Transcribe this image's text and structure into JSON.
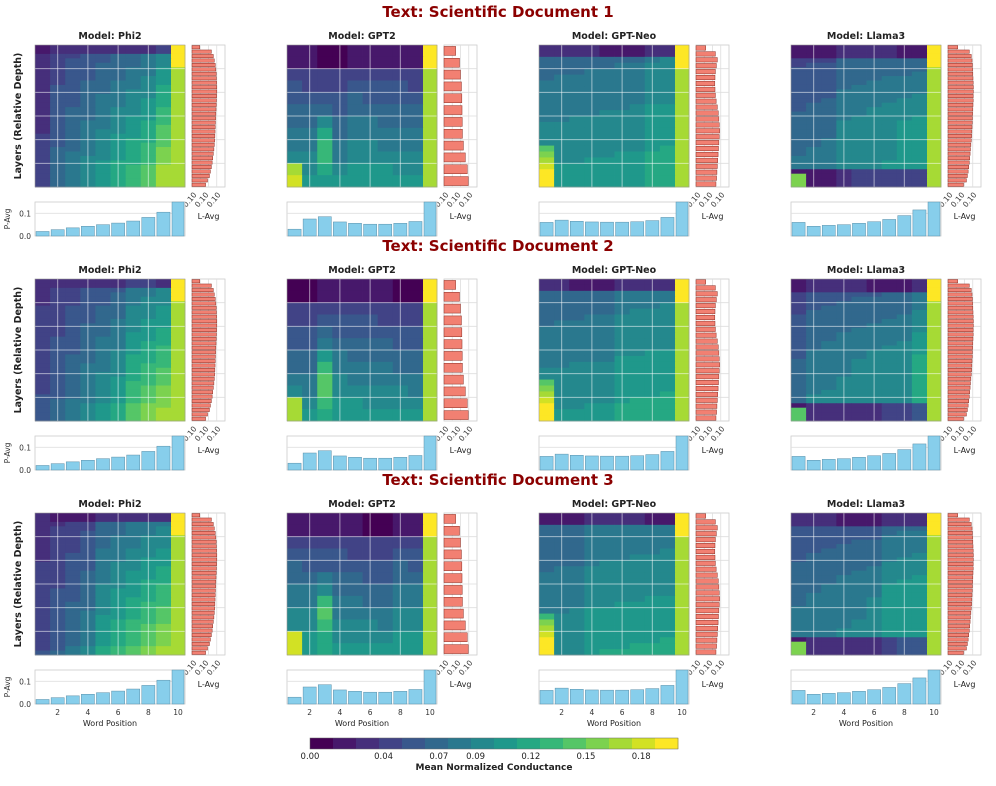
{
  "chart_data": {
    "type": "heatmap",
    "documents": [
      "Text: Scientific Document 1",
      "Text: Scientific Document 2",
      "Text: Scientific Document 3"
    ],
    "models": [
      "Model: Phi2",
      "Model: GPT2",
      "Model: GPT-Neo",
      "Model: Llama3"
    ],
    "model_keys": [
      "phi2",
      "gpt2",
      "gptneo",
      "llama3"
    ],
    "layer_counts": [
      32,
      12,
      24,
      32
    ],
    "ylabel": "Layers (Relative Depth)",
    "xlabel": "Word Position",
    "x_ticks": [
      2,
      4,
      6,
      8,
      10
    ],
    "word_positions": [
      1,
      2,
      3,
      4,
      5,
      6,
      7,
      8,
      9,
      10
    ],
    "p_avg_label": "P-Avg",
    "p_avg_ticks": [
      "0.0",
      "0.1"
    ],
    "p_avg_range": [
      0,
      0.15
    ],
    "l_avg_label": "L-Avg",
    "l_avg_ticks": [
      "0.10",
      "0.10",
      "0.10"
    ],
    "l_avg_range": [
      0,
      0.16
    ],
    "colorbar": {
      "label": "Mean Normalized Conductance",
      "ticks": [
        "0.00",
        "0.04",
        "0.07",
        "0.09",
        "0.12",
        "0.15",
        "0.18"
      ],
      "range": [
        0,
        0.2
      ],
      "colormap": "viridis",
      "levels": 16
    },
    "p_avg": {
      "phi2": [
        0.02,
        0.028,
        0.036,
        0.043,
        0.05,
        0.057,
        0.066,
        0.082,
        0.105,
        0.15
      ],
      "gpt2": [
        0.03,
        0.075,
        0.085,
        0.062,
        0.056,
        0.052,
        0.052,
        0.056,
        0.064,
        0.15
      ],
      "gptneo": [
        0.06,
        0.07,
        0.065,
        0.062,
        0.061,
        0.061,
        0.063,
        0.068,
        0.082,
        0.15
      ],
      "llama3": [
        0.06,
        0.043,
        0.047,
        0.05,
        0.056,
        0.063,
        0.073,
        0.09,
        0.115,
        0.15
      ]
    },
    "l_avg": {
      "phi2": [
        0.04,
        0.1,
        0.11,
        0.115,
        0.12,
        0.123,
        0.125,
        0.126,
        0.127,
        0.128,
        0.128,
        0.127,
        0.126,
        0.125,
        0.124,
        0.123,
        0.122,
        0.121,
        0.12,
        0.119,
        0.118,
        0.117,
        0.115,
        0.113,
        0.11,
        0.107,
        0.104,
        0.1,
        0.095,
        0.09,
        0.08,
        0.07
      ],
      "gpt2": [
        0.06,
        0.08,
        0.085,
        0.09,
        0.092,
        0.093,
        0.094,
        0.095,
        0.1,
        0.11,
        0.12,
        0.125
      ],
      "gptneo": [
        0.05,
        0.1,
        0.11,
        0.105,
        0.1,
        0.098,
        0.097,
        0.098,
        0.1,
        0.104,
        0.11,
        0.115,
        0.118,
        0.12,
        0.122,
        0.12,
        0.118,
        0.116,
        0.114,
        0.112,
        0.11,
        0.108,
        0.106,
        0.103
      ],
      "llama3": [
        0.05,
        0.11,
        0.12,
        0.124,
        0.126,
        0.127,
        0.128,
        0.129,
        0.13,
        0.131,
        0.131,
        0.13,
        0.13,
        0.129,
        0.128,
        0.127,
        0.126,
        0.125,
        0.124,
        0.123,
        0.122,
        0.12,
        0.118,
        0.116,
        0.114,
        0.112,
        0.11,
        0.107,
        0.104,
        0.1,
        0.095,
        0.08
      ]
    }
  }
}
